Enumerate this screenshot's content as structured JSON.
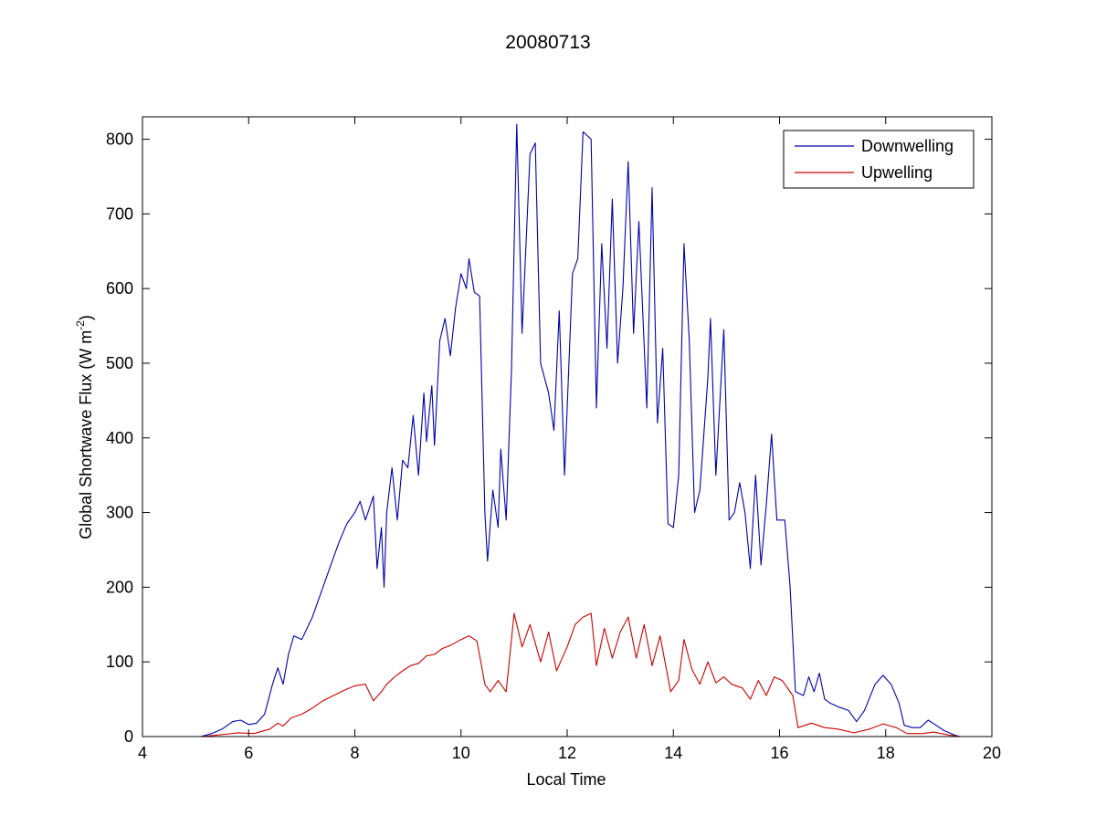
{
  "chart_data": {
    "type": "line",
    "title": "20080713",
    "xlabel": "Local Time",
    "ylabel": "Global Shortwave Flux (W m",
    "ylabel_sup": "-2",
    "ylabel_end": ")",
    "xlim": [
      4,
      20
    ],
    "ylim": [
      0,
      830
    ],
    "xticks": [
      4,
      6,
      8,
      10,
      12,
      14,
      16,
      18,
      20
    ],
    "yticks": [
      0,
      100,
      200,
      300,
      400,
      500,
      600,
      700,
      800
    ],
    "grid": false,
    "legend_position": "top-right",
    "series": [
      {
        "name": "Downwelling",
        "color": "#0000aa",
        "points": [
          [
            4.0,
            0
          ],
          [
            4.4,
            0
          ],
          [
            5.1,
            0
          ],
          [
            5.3,
            4
          ],
          [
            5.5,
            10
          ],
          [
            5.7,
            20
          ],
          [
            5.85,
            22
          ],
          [
            6.0,
            16
          ],
          [
            6.15,
            18
          ],
          [
            6.3,
            30
          ],
          [
            6.45,
            70
          ],
          [
            6.55,
            92
          ],
          [
            6.65,
            70
          ],
          [
            6.75,
            110
          ],
          [
            6.85,
            135
          ],
          [
            7.0,
            130
          ],
          [
            7.2,
            160
          ],
          [
            7.4,
            200
          ],
          [
            7.55,
            230
          ],
          [
            7.7,
            260
          ],
          [
            7.85,
            285
          ],
          [
            8.0,
            300
          ],
          [
            8.1,
            315
          ],
          [
            8.2,
            290
          ],
          [
            8.35,
            322
          ],
          [
            8.42,
            225
          ],
          [
            8.5,
            280
          ],
          [
            8.55,
            200
          ],
          [
            8.6,
            300
          ],
          [
            8.7,
            360
          ],
          [
            8.8,
            290
          ],
          [
            8.9,
            370
          ],
          [
            9.0,
            360
          ],
          [
            9.1,
            430
          ],
          [
            9.2,
            350
          ],
          [
            9.3,
            460
          ],
          [
            9.35,
            395
          ],
          [
            9.45,
            470
          ],
          [
            9.5,
            390
          ],
          [
            9.6,
            530
          ],
          [
            9.7,
            560
          ],
          [
            9.8,
            510
          ],
          [
            9.9,
            575
          ],
          [
            10.0,
            620
          ],
          [
            10.1,
            600
          ],
          [
            10.15,
            640
          ],
          [
            10.25,
            595
          ],
          [
            10.35,
            590
          ],
          [
            10.45,
            300
          ],
          [
            10.5,
            235
          ],
          [
            10.6,
            330
          ],
          [
            10.7,
            280
          ],
          [
            10.75,
            385
          ],
          [
            10.85,
            290
          ],
          [
            10.95,
            490
          ],
          [
            11.05,
            820
          ],
          [
            11.15,
            540
          ],
          [
            11.3,
            780
          ],
          [
            11.4,
            795
          ],
          [
            11.5,
            500
          ],
          [
            11.65,
            460
          ],
          [
            11.75,
            410
          ],
          [
            11.85,
            570
          ],
          [
            11.95,
            350
          ],
          [
            12.1,
            620
          ],
          [
            12.2,
            640
          ],
          [
            12.3,
            810
          ],
          [
            12.45,
            800
          ],
          [
            12.55,
            440
          ],
          [
            12.65,
            660
          ],
          [
            12.75,
            520
          ],
          [
            12.85,
            720
          ],
          [
            12.95,
            500
          ],
          [
            13.05,
            600
          ],
          [
            13.15,
            770
          ],
          [
            13.25,
            540
          ],
          [
            13.35,
            690
          ],
          [
            13.5,
            440
          ],
          [
            13.6,
            735
          ],
          [
            13.7,
            420
          ],
          [
            13.8,
            520
          ],
          [
            13.9,
            285
          ],
          [
            14.0,
            280
          ],
          [
            14.1,
            350
          ],
          [
            14.2,
            660
          ],
          [
            14.3,
            530
          ],
          [
            14.4,
            300
          ],
          [
            14.5,
            330
          ],
          [
            14.65,
            480
          ],
          [
            14.7,
            560
          ],
          [
            14.8,
            350
          ],
          [
            14.95,
            545
          ],
          [
            15.05,
            290
          ],
          [
            15.15,
            300
          ],
          [
            15.25,
            340
          ],
          [
            15.35,
            300
          ],
          [
            15.45,
            225
          ],
          [
            15.55,
            350
          ],
          [
            15.65,
            230
          ],
          [
            15.75,
            310
          ],
          [
            15.85,
            405
          ],
          [
            15.95,
            290
          ],
          [
            16.1,
            290
          ],
          [
            16.2,
            200
          ],
          [
            16.3,
            60
          ],
          [
            16.45,
            55
          ],
          [
            16.55,
            80
          ],
          [
            16.65,
            60
          ],
          [
            16.75,
            85
          ],
          [
            16.85,
            50
          ],
          [
            16.95,
            45
          ],
          [
            17.1,
            40
          ],
          [
            17.3,
            35
          ],
          [
            17.45,
            20
          ],
          [
            17.6,
            35
          ],
          [
            17.8,
            70
          ],
          [
            17.95,
            82
          ],
          [
            18.1,
            70
          ],
          [
            18.25,
            45
          ],
          [
            18.35,
            15
          ],
          [
            18.5,
            12
          ],
          [
            18.65,
            12
          ],
          [
            18.8,
            22
          ],
          [
            18.95,
            15
          ],
          [
            19.1,
            8
          ],
          [
            19.3,
            2
          ],
          [
            19.4,
            0
          ]
        ]
      },
      {
        "name": "Upwelling",
        "color": "#cc0000",
        "points": [
          [
            4.0,
            0
          ],
          [
            4.4,
            0
          ],
          [
            5.1,
            0
          ],
          [
            5.4,
            2
          ],
          [
            5.8,
            5
          ],
          [
            6.1,
            4
          ],
          [
            6.4,
            10
          ],
          [
            6.55,
            18
          ],
          [
            6.65,
            14
          ],
          [
            6.8,
            25
          ],
          [
            7.0,
            30
          ],
          [
            7.2,
            38
          ],
          [
            7.4,
            48
          ],
          [
            7.6,
            55
          ],
          [
            7.8,
            62
          ],
          [
            8.0,
            68
          ],
          [
            8.2,
            70
          ],
          [
            8.35,
            48
          ],
          [
            8.5,
            60
          ],
          [
            8.6,
            70
          ],
          [
            8.75,
            80
          ],
          [
            8.9,
            88
          ],
          [
            9.05,
            95
          ],
          [
            9.2,
            98
          ],
          [
            9.35,
            108
          ],
          [
            9.5,
            110
          ],
          [
            9.65,
            118
          ],
          [
            9.8,
            122
          ],
          [
            10.0,
            130
          ],
          [
            10.15,
            135
          ],
          [
            10.3,
            128
          ],
          [
            10.45,
            70
          ],
          [
            10.55,
            60
          ],
          [
            10.7,
            75
          ],
          [
            10.85,
            60
          ],
          [
            11.0,
            165
          ],
          [
            11.15,
            120
          ],
          [
            11.3,
            150
          ],
          [
            11.5,
            100
          ],
          [
            11.65,
            140
          ],
          [
            11.8,
            88
          ],
          [
            12.0,
            120
          ],
          [
            12.15,
            150
          ],
          [
            12.3,
            160
          ],
          [
            12.45,
            165
          ],
          [
            12.55,
            95
          ],
          [
            12.7,
            145
          ],
          [
            12.85,
            105
          ],
          [
            13.0,
            140
          ],
          [
            13.15,
            160
          ],
          [
            13.3,
            105
          ],
          [
            13.45,
            150
          ],
          [
            13.6,
            95
          ],
          [
            13.75,
            135
          ],
          [
            13.95,
            60
          ],
          [
            14.1,
            75
          ],
          [
            14.2,
            130
          ],
          [
            14.35,
            90
          ],
          [
            14.5,
            70
          ],
          [
            14.65,
            100
          ],
          [
            14.8,
            72
          ],
          [
            14.95,
            80
          ],
          [
            15.1,
            70
          ],
          [
            15.3,
            65
          ],
          [
            15.45,
            50
          ],
          [
            15.6,
            75
          ],
          [
            15.75,
            55
          ],
          [
            15.9,
            80
          ],
          [
            16.05,
            75
          ],
          [
            16.25,
            55
          ],
          [
            16.35,
            12
          ],
          [
            16.6,
            18
          ],
          [
            16.85,
            12
          ],
          [
            17.1,
            10
          ],
          [
            17.4,
            5
          ],
          [
            17.7,
            10
          ],
          [
            17.95,
            17
          ],
          [
            18.2,
            12
          ],
          [
            18.4,
            4
          ],
          [
            18.7,
            4
          ],
          [
            18.9,
            6
          ],
          [
            19.2,
            2
          ],
          [
            19.4,
            0
          ]
        ]
      }
    ]
  }
}
